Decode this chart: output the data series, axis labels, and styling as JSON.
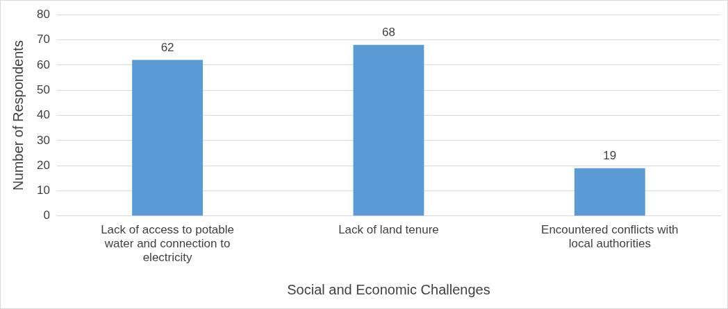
{
  "chart_data": {
    "type": "bar",
    "xlabel": "Social and Economic Challenges",
    "ylabel": "Number of Respondents",
    "categories": [
      "Lack of access to potable water and connection to electricity",
      "Lack of land tenure",
      "Encountered conflicts with local authorities"
    ],
    "values": [
      62,
      68,
      19
    ],
    "color": "#5b9bd5",
    "ylim": [
      0,
      80
    ],
    "yticks": [
      0,
      10,
      20,
      30,
      40,
      50,
      60,
      70,
      80
    ],
    "grid": "y",
    "data_labels": true,
    "legend": false
  }
}
